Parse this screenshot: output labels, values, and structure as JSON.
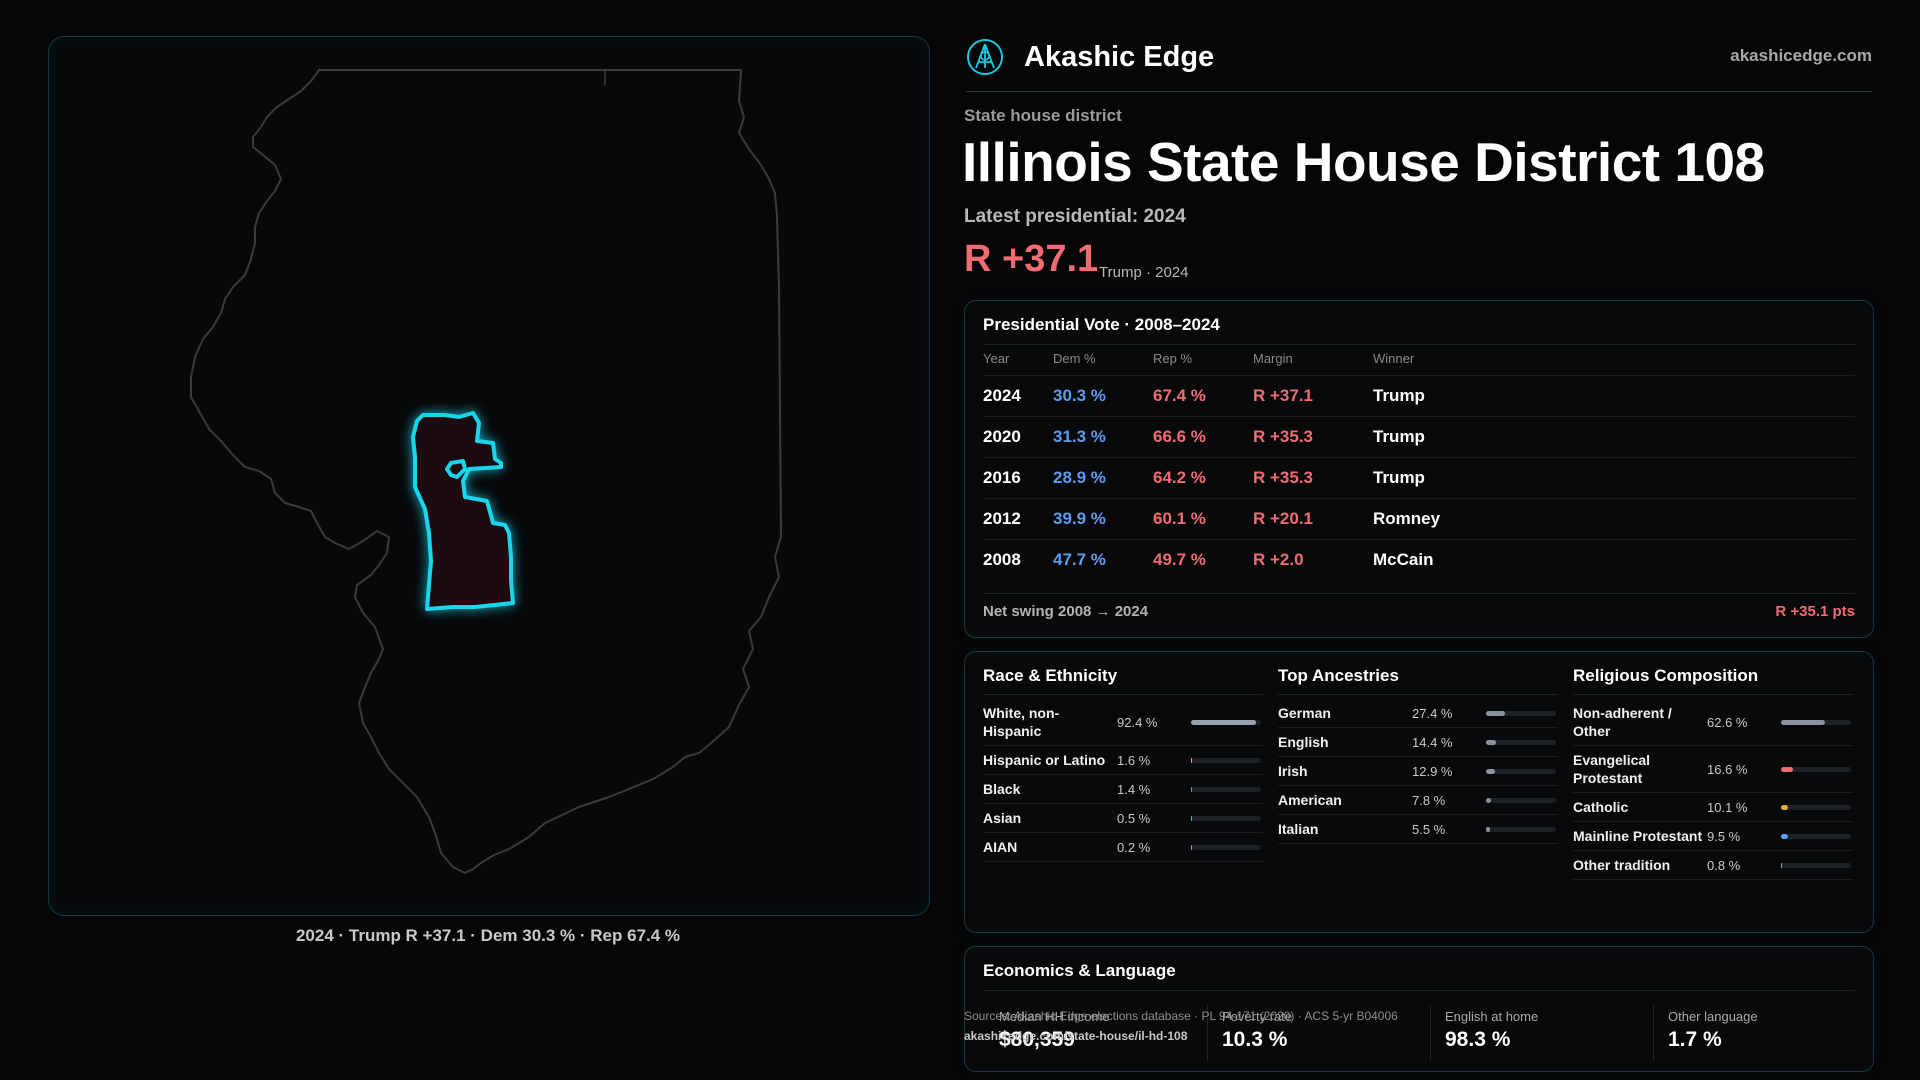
{
  "brand": {
    "name": "Akashic Edge",
    "url": "akashicedge.com",
    "logo_icon": "akashic-edge-logo-icon"
  },
  "header": {
    "kicker": "State house district",
    "title": "Illinois State House District 108",
    "latest_label": "Latest presidential: 2024",
    "margin": "R +37.1",
    "margin_note": "Trump · 2024"
  },
  "map": {
    "caption": "2024 · Trump R +37.1 · Dem 30.3 % · Rep 67.4 %",
    "colors": {
      "state_outline": "#3a3a3a",
      "district_outline": "#19d6ee",
      "district_fill": "#1c0c10"
    }
  },
  "vote_table": {
    "title": "Presidential Vote · 2008–2024",
    "headers": {
      "year": "Year",
      "dem": "Dem %",
      "rep": "Rep %",
      "margin": "Margin",
      "winner": "Winner"
    },
    "rows": [
      {
        "year": "2024",
        "dem": "30.3 %",
        "rep": "67.4 %",
        "margin": "R +37.1",
        "winner": "Trump"
      },
      {
        "year": "2020",
        "dem": "31.3 %",
        "rep": "66.6 %",
        "margin": "R +35.3",
        "winner": "Trump"
      },
      {
        "year": "2016",
        "dem": "28.9 %",
        "rep": "64.2 %",
        "margin": "R +35.3",
        "winner": "Trump"
      },
      {
        "year": "2012",
        "dem": "39.9 %",
        "rep": "60.1 %",
        "margin": "R +20.1",
        "winner": "Romney"
      },
      {
        "year": "2008",
        "dem": "47.7 %",
        "rep": "49.7 %",
        "margin": "R +2.0",
        "winner": "McCain"
      }
    ],
    "swing_label": "Net swing 2008 → 2024",
    "swing_value": "R +35.1 pts"
  },
  "race": {
    "title": "Race & Ethnicity",
    "rows": [
      {
        "label": "White, non-Hispanic",
        "value": "92.4 %",
        "pct": 92.4,
        "color": "#9aa3ad"
      },
      {
        "label": "Hispanic or Latino",
        "value": "1.6 %",
        "pct": 1.6,
        "color": "#e0a35a"
      },
      {
        "label": "Black",
        "value": "1.4 %",
        "pct": 1.4,
        "color": "#6f8fe0"
      },
      {
        "label": "Asian",
        "value": "0.5 %",
        "pct": 0.5,
        "color": "#4fc08d"
      },
      {
        "label": "AIAN",
        "value": "0.2 %",
        "pct": 0.2,
        "color": "#9aa3ad"
      }
    ]
  },
  "ancestry": {
    "title": "Top Ancestries",
    "rows": [
      {
        "label": "German",
        "value": "27.4 %",
        "pct": 27.4,
        "color": "#8a939d"
      },
      {
        "label": "English",
        "value": "14.4 %",
        "pct": 14.4,
        "color": "#8a939d"
      },
      {
        "label": "Irish",
        "value": "12.9 %",
        "pct": 12.9,
        "color": "#8a939d"
      },
      {
        "label": "American",
        "value": "7.8 %",
        "pct": 7.8,
        "color": "#8a939d"
      },
      {
        "label": "Italian",
        "value": "5.5 %",
        "pct": 5.5,
        "color": "#8a939d"
      }
    ]
  },
  "religion": {
    "title": "Religious Composition",
    "rows": [
      {
        "label": "Non-adherent / Other",
        "value": "62.6 %",
        "pct": 62.6,
        "color": "#8a939d"
      },
      {
        "label": "Evangelical Protestant",
        "value": "16.6 %",
        "pct": 16.6,
        "color": "#f06c72"
      },
      {
        "label": "Catholic",
        "value": "10.1 %",
        "pct": 10.1,
        "color": "#e0b040"
      },
      {
        "label": "Mainline Protestant",
        "value": "9.5 %",
        "pct": 9.5,
        "color": "#5e9bf0"
      },
      {
        "label": "Other tradition",
        "value": "0.8 %",
        "pct": 0.8,
        "color": "#9aa3ad"
      }
    ]
  },
  "economics": {
    "title": "Economics & Language",
    "items": [
      {
        "label": "Median HH income",
        "value": "$80,359"
      },
      {
        "label": "Poverty rate",
        "value": "10.3 %"
      },
      {
        "label": "English at home",
        "value": "98.3 %"
      },
      {
        "label": "Other language",
        "value": "1.7 %"
      }
    ]
  },
  "source": {
    "text": "Sources: Akashic Edge elections database · PL 94-171 (2020) · ACS 5-yr B04006",
    "url": "akashicedge.com/state-house/il-hd-108"
  }
}
